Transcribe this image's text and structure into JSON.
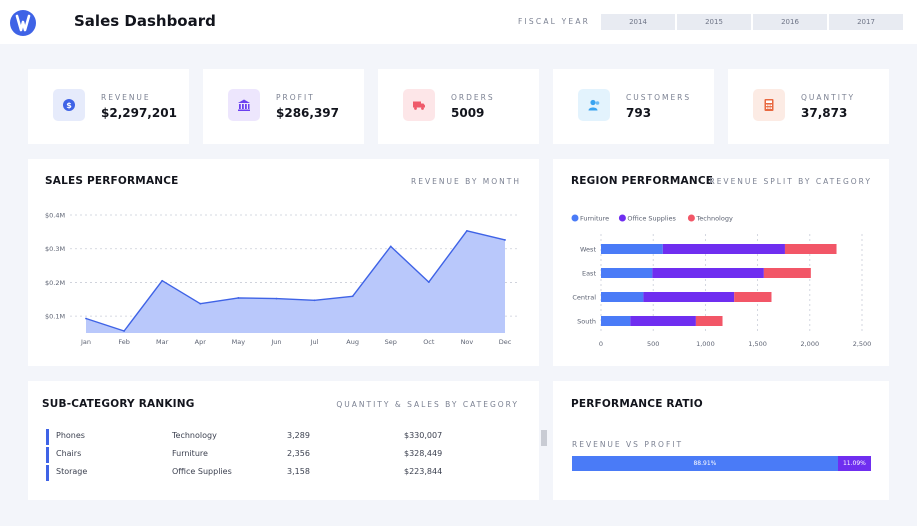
{
  "header": {
    "title": "Sales Dashboard",
    "fiscal_year_label": "FISCAL YEAR",
    "years": [
      "2014",
      "2015",
      "2016",
      "2017"
    ]
  },
  "kpis": [
    {
      "label": "REVENUE",
      "value": "$2,297,201",
      "icon": "dollar-coin-icon",
      "icon_color": "#3f63e6",
      "icon_bg": "#e6ebfb"
    },
    {
      "label": "PROFIT",
      "value": "$286,397",
      "icon": "bank-icon",
      "icon_color": "#6b3ff0",
      "icon_bg": "#ede6fd"
    },
    {
      "label": "ORDERS",
      "value": "5009",
      "icon": "truck-icon",
      "icon_color": "#ef5a6a",
      "icon_bg": "#fde6e8"
    },
    {
      "label": "CUSTOMERS",
      "value": "793",
      "icon": "users-icon",
      "icon_color": "#3aa3f0",
      "icon_bg": "#e3f3fd"
    },
    {
      "label": "QUANTITY",
      "value": "37,873",
      "icon": "calculator-icon",
      "icon_color": "#e8683f",
      "icon_bg": "#fcebe4"
    }
  ],
  "sales_performance": {
    "title": "SALES PERFORMANCE",
    "subtitle": "REVENUE BY MONTH"
  },
  "region_performance": {
    "title": "REGION PERFORMANCE",
    "subtitle": "REVENUE SPLIT BY CATEGORY"
  },
  "subcategory_ranking": {
    "title": "SUB-CATEGORY RANKING",
    "subtitle": "QUANTITY & SALES BY CATEGORY",
    "rows": [
      {
        "name": "Phones",
        "category": "Technology",
        "quantity": "3,289",
        "sales": "$330,007"
      },
      {
        "name": "Chairs",
        "category": "Furniture",
        "quantity": "2,356",
        "sales": "$328,449"
      },
      {
        "name": "Storage",
        "category": "Office Supplies",
        "quantity": "3,158",
        "sales": "$223,844"
      }
    ]
  },
  "performance_ratio": {
    "title": "PERFORMANCE RATIO",
    "subtitle": "REVENUE VS PROFIT",
    "revenue_pct_label": "88.91%",
    "profit_pct_label": "11.09%",
    "revenue_fraction": 0.8891,
    "profit_fraction": 0.1109,
    "revenue_color": "#4a7bf7",
    "profit_color": "#6f2ef0"
  },
  "chart_data": [
    {
      "type": "area",
      "categories": [
        "Jan",
        "Feb",
        "Mar",
        "Apr",
        "May",
        "Jun",
        "Jul",
        "Aug",
        "Sep",
        "Oct",
        "Nov",
        "Dec"
      ],
      "values": [
        0.093,
        0.056,
        0.205,
        0.137,
        0.154,
        0.152,
        0.147,
        0.159,
        0.307,
        0.201,
        0.353,
        0.326
      ],
      "y_unit": "$M",
      "yticks": [
        "$0.1M",
        "$0.2M",
        "$0.3M",
        "$0.4M"
      ],
      "ytick_values": [
        0.1,
        0.2,
        0.3,
        0.4
      ],
      "ylim": [
        0.05,
        0.4
      ],
      "grid": true,
      "fill_color": "#b9c8fb",
      "line_color": "#3f63e6"
    },
    {
      "type": "bar",
      "orientation": "horizontal",
      "stacked": true,
      "categories": [
        "West",
        "East",
        "Central",
        "South"
      ],
      "series": [
        {
          "name": "Furniture",
          "color": "#4a7bf7",
          "values": [
            592,
            492,
            406,
            281
          ]
        },
        {
          "name": "Office Supplies",
          "color": "#6f2ef0",
          "values": [
            1170,
            1068,
            870,
            628
          ]
        },
        {
          "name": "Technology",
          "color": "#f25667",
          "values": [
            494,
            450,
            357,
            255
          ]
        }
      ],
      "xticks": [
        "0",
        "500",
        "1,000",
        "1,500",
        "2,000",
        "2,500"
      ],
      "xtick_values": [
        0,
        500,
        1000,
        1500,
        2000,
        2500
      ],
      "xlim": [
        0,
        2500
      ],
      "legend": "top-left",
      "grid": true
    }
  ]
}
